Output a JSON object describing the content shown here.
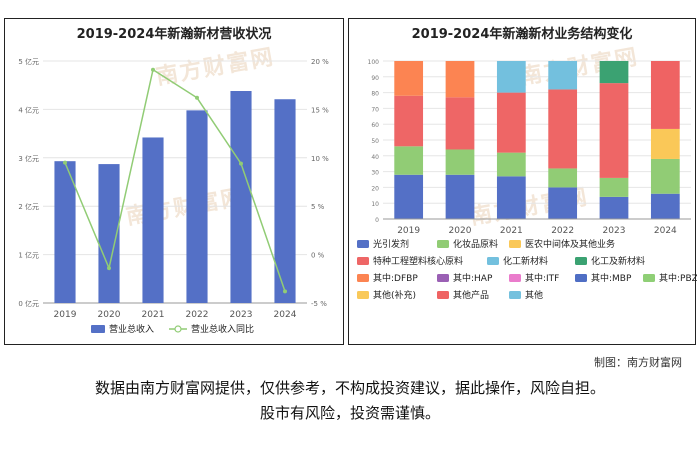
{
  "watermark": "南方财富网",
  "credit": "制图：南方财富网",
  "disclaimer": {
    "line1": "数据由南方财富网提供，仅供参考，不构成投资建议，据此操作，风险自担。",
    "line2": "股市有风险，投资需谨慎。"
  },
  "chart_data": [
    {
      "type": "bar",
      "title": "2019-2024年新瀚新材营收状况",
      "categories": [
        "2019",
        "2020",
        "2021",
        "2022",
        "2023",
        "2024"
      ],
      "series": [
        {
          "name": "营业总收入",
          "type": "bar",
          "axis": "left",
          "color": "#5470c6",
          "values": [
            2.93,
            2.87,
            3.42,
            3.98,
            4.38,
            4.21
          ]
        },
        {
          "name": "营业总收入同比",
          "type": "line",
          "axis": "right",
          "color": "#91cc75",
          "values": [
            9.5,
            -1.4,
            19.1,
            16.2,
            9.4,
            -3.8
          ]
        }
      ],
      "yleft": {
        "ticks": [
          "0 亿元",
          "1 亿元",
          "2 亿元",
          "3 亿元",
          "4 亿元",
          "5 亿元"
        ],
        "min": 0,
        "max": 5
      },
      "yright": {
        "ticks": [
          "-5 %",
          "0 %",
          "5 %",
          "10 %",
          "15 %",
          "20 %"
        ],
        "min": -5,
        "max": 20
      },
      "legend": [
        "营业总收入",
        "营业总收入同比"
      ],
      "legend_position": "bottom"
    },
    {
      "type": "stacked_bar",
      "title": "2019-2024年新瀚新材业务结构变化",
      "categories": [
        "2019",
        "2020",
        "2021",
        "2022",
        "2023",
        "2024"
      ],
      "ylim": [
        0,
        100
      ],
      "yticks": [
        "0",
        "10",
        "20",
        "30",
        "40",
        "50",
        "60",
        "70",
        "80",
        "90",
        "100"
      ],
      "series": [
        {
          "name": "光引发剂",
          "color": "#5470c6",
          "values": [
            28,
            28,
            27,
            20,
            14,
            16
          ]
        },
        {
          "name": "化妆品原料",
          "color": "#91cc75",
          "values": [
            18,
            16,
            15,
            12,
            12,
            22
          ]
        },
        {
          "name": "医农中间体及其他业务",
          "color": "#fac858",
          "values": [
            0,
            0,
            0,
            0,
            0,
            19
          ]
        },
        {
          "name": "特种工程塑料核心原料",
          "color": "#ee6666",
          "values": [
            32,
            33,
            38,
            50,
            60,
            0
          ]
        },
        {
          "name": "化工新材料",
          "color": "#73c0de",
          "values": [
            0,
            0,
            20,
            18,
            0,
            0
          ]
        },
        {
          "name": "化工及新材料",
          "color": "#3ba272",
          "values": [
            0,
            0,
            0,
            0,
            14,
            0
          ]
        },
        {
          "name": "其中:DFBP",
          "color": "#fc8452",
          "values": [
            22,
            23,
            0,
            0,
            0,
            0
          ]
        },
        {
          "name": "其中:HAP",
          "color": "#9a60b4",
          "values": [
            0,
            0,
            0,
            0,
            0,
            0
          ]
        },
        {
          "name": "其中:ITF",
          "color": "#ea7ccc",
          "values": [
            0,
            0,
            0,
            0,
            0,
            0
          ]
        },
        {
          "name": "其中:MBP",
          "color": "#4f6ec4",
          "values": [
            0,
            0,
            0,
            0,
            0,
            0
          ]
        },
        {
          "name": "其中:PBZ",
          "color": "#8fcf76",
          "values": [
            0,
            0,
            0,
            0,
            0,
            0
          ]
        },
        {
          "name": "其他(补充)",
          "color": "#f9c95a",
          "values": [
            0,
            0,
            0,
            0,
            0,
            0
          ]
        },
        {
          "name": "其他产品",
          "color": "#ef6363",
          "values": [
            0,
            0,
            0,
            0,
            0,
            43
          ]
        },
        {
          "name": "其他",
          "color": "#75c1de",
          "values": [
            0,
            0,
            0,
            0,
            0,
            0
          ]
        }
      ],
      "legend_position": "bottom"
    }
  ]
}
